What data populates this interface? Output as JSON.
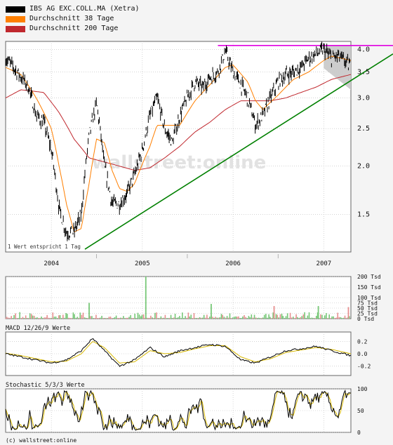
{
  "legend": [
    {
      "label": "IBS AG EXC.COLL.MA (Xetra)",
      "color": "#000000"
    },
    {
      "label": "Durchschnitt 38 Tage",
      "color": "#ff7f00"
    },
    {
      "label": "Durchschnitt 200 Tage",
      "color": "#c0282e"
    }
  ],
  "footnote": "1 Wert entspricht 1 Tag",
  "watermark": "wallstreet:online",
  "copyright": "(c) wallstreet:online",
  "macd_title": "MACD 12/26/9 Werte",
  "stoch_title": "Stochastic 5/3/3 Werte",
  "chart_data": [
    {
      "type": "line",
      "panel": "price",
      "y_scale": "log",
      "ylim": [
        1.2,
        4.2
      ],
      "y_ticks": [
        "4.0",
        "3.5",
        "3.0",
        "2.5",
        "2.0",
        "1.5"
      ],
      "y_tick_values": [
        4.0,
        3.5,
        3.0,
        2.5,
        2.0,
        1.5
      ],
      "x_range": [
        "2003-07-01",
        "2007-04-20"
      ],
      "x_ticks": [
        "2004",
        "2005",
        "2006",
        "2007"
      ],
      "x_tick_dates": [
        "2004-01-01",
        "2005-01-01",
        "2006-01-01",
        "2007-01-01"
      ],
      "series": [
        {
          "name": "IBS AG EXC.COLL.MA (Xetra)",
          "color": "#000000",
          "x": [
            "2003-07-01",
            "2003-08-01",
            "2003-09-01",
            "2003-10-01",
            "2003-11-01",
            "2003-12-01",
            "2004-01-01",
            "2004-02-01",
            "2004-03-01",
            "2004-04-01",
            "2004-05-01",
            "2004-06-01",
            "2004-07-01",
            "2004-08-01",
            "2004-09-01",
            "2004-10-01",
            "2004-11-01",
            "2004-12-01",
            "2005-01-01",
            "2005-02-01",
            "2005-03-01",
            "2005-04-01",
            "2005-05-01",
            "2005-06-01",
            "2005-07-01",
            "2005-08-01",
            "2005-09-01",
            "2005-10-01",
            "2005-11-01",
            "2005-12-01",
            "2006-01-01",
            "2006-02-01",
            "2006-03-01",
            "2006-04-01",
            "2006-05-01",
            "2006-06-01",
            "2006-07-01",
            "2006-08-01",
            "2006-09-01",
            "2006-10-01",
            "2006-11-01",
            "2006-12-01",
            "2007-01-01",
            "2007-02-01",
            "2007-03-01",
            "2007-04-01",
            "2007-04-20"
          ],
          "y": [
            3.8,
            3.6,
            3.4,
            3.2,
            2.7,
            2.6,
            2.2,
            1.55,
            1.35,
            1.35,
            1.5,
            2.4,
            2.9,
            2.0,
            1.6,
            1.6,
            1.7,
            1.9,
            2.2,
            2.7,
            3.0,
            2.5,
            2.3,
            2.7,
            3.0,
            3.3,
            3.2,
            3.4,
            3.5,
            3.95,
            3.5,
            3.25,
            3.0,
            2.55,
            2.7,
            3.0,
            3.3,
            3.45,
            3.5,
            3.6,
            3.8,
            3.9,
            4.0,
            3.8,
            3.85,
            3.7,
            3.6
          ]
        },
        {
          "name": "Durchschnitt 38 Tage",
          "color": "#ff7f00",
          "x": [
            "2003-07-01",
            "2003-09-01",
            "2003-11-01",
            "2004-01-01",
            "2004-02-01",
            "2004-03-01",
            "2004-04-01",
            "2004-05-01",
            "2004-06-01",
            "2004-07-01",
            "2004-08-01",
            "2004-09-01",
            "2004-10-01",
            "2004-11-01",
            "2004-12-01",
            "2005-02-01",
            "2005-03-01",
            "2005-04-01",
            "2005-06-01",
            "2005-08-01",
            "2005-10-01",
            "2005-12-01",
            "2006-01-01",
            "2006-03-01",
            "2006-04-01",
            "2006-05-01",
            "2006-07-01",
            "2006-09-01",
            "2006-11-01",
            "2007-01-01",
            "2007-02-01",
            "2007-04-20"
          ],
          "y": [
            3.6,
            3.45,
            3.0,
            2.5,
            2.0,
            1.6,
            1.35,
            1.38,
            1.8,
            2.35,
            2.3,
            1.95,
            1.75,
            1.72,
            1.8,
            2.25,
            2.55,
            2.55,
            2.55,
            2.95,
            3.25,
            3.6,
            3.65,
            3.3,
            2.95,
            2.8,
            3.05,
            3.35,
            3.5,
            3.75,
            3.85,
            3.75
          ]
        },
        {
          "name": "Durchschnitt 200 Tage",
          "color": "#c0282e",
          "x": [
            "2003-07-01",
            "2003-09-01",
            "2003-12-01",
            "2004-02-01",
            "2004-04-01",
            "2004-06-01",
            "2004-08-01",
            "2004-10-01",
            "2004-12-01",
            "2005-02-01",
            "2005-04-01",
            "2005-06-01",
            "2005-08-01",
            "2005-10-01",
            "2005-12-01",
            "2006-02-01",
            "2006-04-01",
            "2006-06-01",
            "2006-08-01",
            "2006-10-01",
            "2006-12-01",
            "2007-02-01",
            "2007-04-20"
          ],
          "y": [
            3.0,
            3.15,
            3.1,
            2.75,
            2.35,
            2.1,
            2.05,
            2.0,
            1.95,
            1.98,
            2.1,
            2.25,
            2.45,
            2.6,
            2.8,
            2.95,
            2.95,
            2.95,
            3.0,
            3.1,
            3.2,
            3.35,
            3.45
          ]
        }
      ],
      "annotations": [
        {
          "kind": "support-trendline",
          "color": "#008000",
          "x": [
            "2004-05-15",
            "2007-04-20"
          ],
          "y": [
            1.22,
            3.75
          ]
        },
        {
          "kind": "resistance-line",
          "color": "#e000e0",
          "x": [
            "2005-11-01",
            "2007-04-20"
          ],
          "y": [
            4.1,
            4.1
          ]
        }
      ]
    },
    {
      "type": "bar",
      "panel": "volume",
      "ylim": [
        0,
        200
      ],
      "y_ticks": [
        "200 Tsd",
        "150 Tsd",
        "100 Tsd",
        "75 Tsd",
        "50 Tsd",
        "25 Tsd",
        "0 Tsd"
      ],
      "y_tick_values": [
        200,
        150,
        100,
        75,
        50,
        25,
        0
      ],
      "units": "Tsd",
      "up_color": "#78c878",
      "down_color": "#e89090",
      "spikes": [
        {
          "x": "2005-01-15",
          "value": 200,
          "dir": "up"
        },
        {
          "x": "2004-06-01",
          "value": 75,
          "dir": "up"
        },
        {
          "x": "2006-12-10",
          "value": 60,
          "dir": "up"
        },
        {
          "x": "2005-10-05",
          "value": 70,
          "dir": "up"
        },
        {
          "x": "2006-06-15",
          "value": 60,
          "dir": "down"
        },
        {
          "x": "2007-04-10",
          "value": 55,
          "dir": "down"
        }
      ]
    },
    {
      "type": "line",
      "panel": "macd",
      "title": "MACD 12/26/9 Werte",
      "ylim": [
        -0.35,
        0.35
      ],
      "y_ticks": [
        "0.2",
        "0.0",
        "-0.2"
      ],
      "y_tick_values": [
        0.2,
        0.0,
        -0.2
      ],
      "series": [
        {
          "name": "MACD",
          "color": "#000000",
          "x": [
            "2003-07-01",
            "2003-09-01",
            "2003-11-01",
            "2004-01-01",
            "2004-03-01",
            "2004-05-01",
            "2004-06-15",
            "2004-08-01",
            "2004-10-01",
            "2004-12-01",
            "2005-02-01",
            "2005-04-01",
            "2005-06-01",
            "2005-08-01",
            "2005-10-01",
            "2005-12-01",
            "2006-02-01",
            "2006-04-01",
            "2006-06-01",
            "2006-08-01",
            "2006-10-01",
            "2006-12-01",
            "2007-02-01",
            "2007-04-20"
          ],
          "y": [
            0.0,
            -0.05,
            -0.1,
            -0.15,
            -0.1,
            0.05,
            0.25,
            0.05,
            -0.2,
            -0.1,
            0.1,
            -0.05,
            0.05,
            0.1,
            0.15,
            0.12,
            -0.1,
            -0.15,
            -0.05,
            0.05,
            0.08,
            0.12,
            0.05,
            -0.03
          ]
        },
        {
          "name": "Signal",
          "color": "#d8b800",
          "x": [
            "2003-07-01",
            "2003-09-01",
            "2003-11-01",
            "2004-01-01",
            "2004-03-01",
            "2004-05-01",
            "2004-06-15",
            "2004-08-01",
            "2004-10-01",
            "2004-12-01",
            "2005-02-01",
            "2005-04-01",
            "2005-06-01",
            "2005-08-01",
            "2005-10-01",
            "2005-12-01",
            "2006-02-01",
            "2006-04-01",
            "2006-06-01",
            "2006-08-01",
            "2006-10-01",
            "2006-12-01",
            "2007-02-01",
            "2007-04-20"
          ],
          "y": [
            0.01,
            -0.03,
            -0.08,
            -0.13,
            -0.12,
            0.0,
            0.2,
            0.1,
            -0.15,
            -0.13,
            0.05,
            0.0,
            0.02,
            0.08,
            0.13,
            0.13,
            -0.05,
            -0.13,
            -0.08,
            0.02,
            0.06,
            0.1,
            0.07,
            0.0
          ]
        }
      ]
    },
    {
      "type": "line",
      "panel": "stochastic",
      "title": "Stochastic 5/3/3 Werte",
      "ylim": [
        0,
        100
      ],
      "y_ticks": [
        "100",
        "50",
        "0"
      ],
      "y_tick_values": [
        100,
        50,
        0
      ],
      "series": [
        {
          "name": "%K",
          "color": "#000000",
          "oscillation": "fast",
          "range": [
            5,
            98
          ]
        },
        {
          "name": "%D",
          "color": "#d8b800",
          "oscillation": "smoothed",
          "range": [
            10,
            92
          ]
        }
      ]
    }
  ]
}
